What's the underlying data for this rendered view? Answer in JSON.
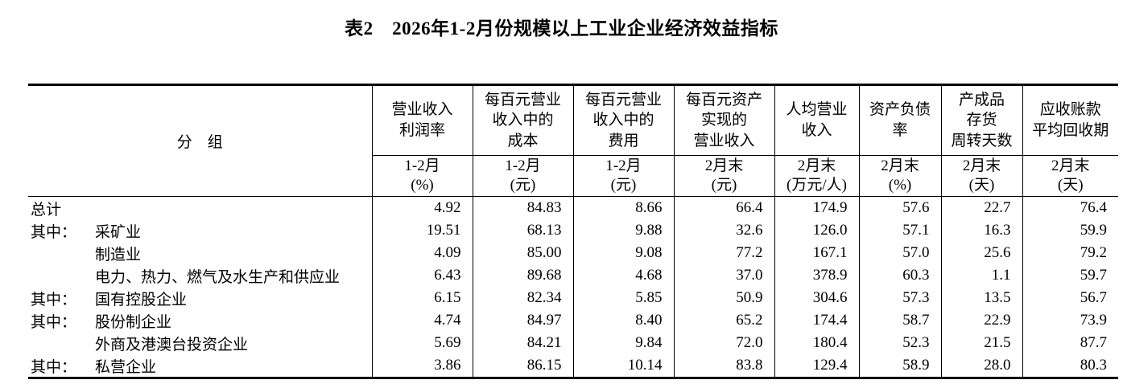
{
  "page": {
    "background": "#ffffff",
    "text_color": "#000000"
  },
  "title": "表2　2026年1-2月份规模以上工业企业经济效益指标",
  "table": {
    "group_column_header": "分　组",
    "columns": [
      {
        "title": "营业收入\n利润率",
        "subtitle": "1-2月\n(%)"
      },
      {
        "title": "每百元营业\n收入中的\n成本",
        "subtitle": "1-2月\n(元)"
      },
      {
        "title": "每百元营业\n收入中的\n费用",
        "subtitle": "1-2月\n(元)"
      },
      {
        "title": "每百元资产\n实现的\n营业收入",
        "subtitle": "2月末\n(元)"
      },
      {
        "title": "人均营业\n收入",
        "subtitle": "2月末\n(万元/人)"
      },
      {
        "title": "资产负债\n率",
        "subtitle": "2月末\n(%)"
      },
      {
        "title": "产成品\n存货\n周转天数",
        "subtitle": "2月末\n(天)"
      },
      {
        "title": "应收账款\n平均回收期",
        "subtitle": "2月末\n(天)"
      }
    ],
    "rows": [
      {
        "prefix": "",
        "label": "总计",
        "values": [
          "4.92",
          "84.83",
          "8.66",
          "66.4",
          "174.9",
          "57.6",
          "22.7",
          "76.4"
        ]
      },
      {
        "prefix": "其中：",
        "label": "采矿业",
        "values": [
          "19.51",
          "68.13",
          "9.88",
          "32.6",
          "126.0",
          "57.1",
          "16.3",
          "59.9"
        ]
      },
      {
        "prefix": "",
        "label": "制造业",
        "values": [
          "4.09",
          "85.00",
          "9.08",
          "77.2",
          "167.1",
          "57.0",
          "25.6",
          "79.2"
        ]
      },
      {
        "prefix": "",
        "label": "电力、热力、燃气及水生产和供应业",
        "values": [
          "6.43",
          "89.68",
          "4.68",
          "37.0",
          "378.9",
          "60.3",
          "1.1",
          "59.7"
        ]
      },
      {
        "prefix": "其中：",
        "label": "国有控股企业",
        "values": [
          "6.15",
          "82.34",
          "5.85",
          "50.9",
          "304.6",
          "57.3",
          "13.5",
          "56.7"
        ]
      },
      {
        "prefix": "其中：",
        "label": "股份制企业",
        "values": [
          "4.74",
          "84.97",
          "8.40",
          "65.2",
          "174.4",
          "58.7",
          "22.9",
          "73.9"
        ]
      },
      {
        "prefix": "",
        "label": "外商及港澳台投资企业",
        "values": [
          "5.69",
          "84.21",
          "9.84",
          "72.0",
          "180.4",
          "52.3",
          "21.5",
          "87.7"
        ]
      },
      {
        "prefix": "其中：",
        "label": "私营企业",
        "values": [
          "3.86",
          "86.15",
          "10.14",
          "83.8",
          "129.4",
          "58.9",
          "28.0",
          "80.3"
        ]
      }
    ]
  }
}
